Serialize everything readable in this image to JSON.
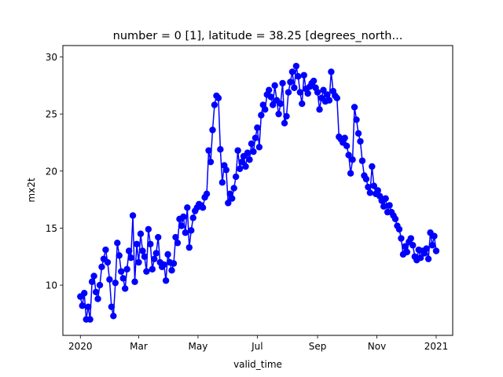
{
  "chart_data": {
    "type": "line",
    "title": "number = 0 [1], latitude = 38.25 [degrees_north...",
    "xlabel": "valid_time",
    "ylabel": "mx2t",
    "xlim": [
      "2019-12-14",
      "2021-01-18"
    ],
    "ylim": [
      5.6,
      31.0
    ],
    "grid": false,
    "legend": "none",
    "marker": "circle",
    "color": "#0000ff",
    "x_ticks": [
      {
        "date": "2020-01-01",
        "label": "2020"
      },
      {
        "date": "2020-03-01",
        "label": "Mar"
      },
      {
        "date": "2020-05-01",
        "label": "May"
      },
      {
        "date": "2020-07-01",
        "label": "Jul"
      },
      {
        "date": "2020-09-01",
        "label": "Sep"
      },
      {
        "date": "2020-11-01",
        "label": "Nov"
      },
      {
        "date": "2021-01-01",
        "label": "2021"
      }
    ],
    "y_ticks": [
      10,
      15,
      20,
      25,
      30
    ],
    "x": [
      "2020-01-01",
      "2020-01-03",
      "2020-01-05",
      "2020-01-07",
      "2020-01-09",
      "2020-01-11",
      "2020-01-13",
      "2020-01-15",
      "2020-01-17",
      "2020-01-19",
      "2020-01-21",
      "2020-01-23",
      "2020-01-25",
      "2020-01-27",
      "2020-01-29",
      "2020-01-31",
      "2020-02-02",
      "2020-02-04",
      "2020-02-06",
      "2020-02-08",
      "2020-02-10",
      "2020-02-12",
      "2020-02-14",
      "2020-02-16",
      "2020-02-18",
      "2020-02-20",
      "2020-02-22",
      "2020-02-24",
      "2020-02-26",
      "2020-02-28",
      "2020-03-01",
      "2020-03-03",
      "2020-03-05",
      "2020-03-07",
      "2020-03-09",
      "2020-03-11",
      "2020-03-13",
      "2020-03-15",
      "2020-03-17",
      "2020-03-19",
      "2020-03-21",
      "2020-03-23",
      "2020-03-25",
      "2020-03-27",
      "2020-03-29",
      "2020-03-31",
      "2020-04-02",
      "2020-04-04",
      "2020-04-06",
      "2020-04-08",
      "2020-04-10",
      "2020-04-12",
      "2020-04-14",
      "2020-04-16",
      "2020-04-18",
      "2020-04-20",
      "2020-04-22",
      "2020-04-24",
      "2020-04-26",
      "2020-04-28",
      "2020-04-30",
      "2020-05-02",
      "2020-05-04",
      "2020-05-06",
      "2020-05-08",
      "2020-05-10",
      "2020-05-12",
      "2020-05-14",
      "2020-05-16",
      "2020-05-18",
      "2020-05-20",
      "2020-05-22",
      "2020-05-24",
      "2020-05-26",
      "2020-05-28",
      "2020-05-30",
      "2020-06-01",
      "2020-06-03",
      "2020-06-05",
      "2020-06-07",
      "2020-06-09",
      "2020-06-11",
      "2020-06-13",
      "2020-06-15",
      "2020-06-17",
      "2020-06-19",
      "2020-06-21",
      "2020-06-23",
      "2020-06-25",
      "2020-06-27",
      "2020-06-29",
      "2020-07-01",
      "2020-07-03",
      "2020-07-05",
      "2020-07-07",
      "2020-07-09",
      "2020-07-11",
      "2020-07-13",
      "2020-07-15",
      "2020-07-17",
      "2020-07-19",
      "2020-07-21",
      "2020-07-23",
      "2020-07-25",
      "2020-07-27",
      "2020-07-29",
      "2020-07-31",
      "2020-08-02",
      "2020-08-04",
      "2020-08-06",
      "2020-08-08",
      "2020-08-10",
      "2020-08-12",
      "2020-08-14",
      "2020-08-16",
      "2020-08-18",
      "2020-08-20",
      "2020-08-22",
      "2020-08-24",
      "2020-08-26",
      "2020-08-28",
      "2020-08-30",
      "2020-09-01",
      "2020-09-03",
      "2020-09-05",
      "2020-09-07",
      "2020-09-09",
      "2020-09-11",
      "2020-09-13",
      "2020-09-15",
      "2020-09-17",
      "2020-09-19",
      "2020-09-21",
      "2020-09-23",
      "2020-09-25",
      "2020-09-27",
      "2020-09-29",
      "2020-10-01",
      "2020-10-03",
      "2020-10-05",
      "2020-10-07",
      "2020-10-09",
      "2020-10-11",
      "2020-10-13",
      "2020-10-15",
      "2020-10-17",
      "2020-10-19",
      "2020-10-21",
      "2020-10-23",
      "2020-10-25",
      "2020-10-27",
      "2020-10-29",
      "2020-10-31",
      "2020-11-02",
      "2020-11-04",
      "2020-11-06",
      "2020-11-08",
      "2020-11-10",
      "2020-11-12",
      "2020-11-14",
      "2020-11-16",
      "2020-11-18",
      "2020-11-20",
      "2020-11-22",
      "2020-11-24",
      "2020-11-26",
      "2020-11-28",
      "2020-11-30",
      "2020-12-02",
      "2020-12-04",
      "2020-12-06",
      "2020-12-08",
      "2020-12-10",
      "2020-12-12",
      "2020-12-14",
      "2020-12-16",
      "2020-12-18",
      "2020-12-20",
      "2020-12-22",
      "2020-12-24",
      "2020-12-26",
      "2020-12-28",
      "2020-12-30",
      "2021-01-01"
    ],
    "series": [
      {
        "values": [
          9.0,
          8.2,
          9.3,
          7.0,
          8.1,
          7.0,
          10.3,
          10.8,
          9.4,
          8.8,
          10.0,
          11.6,
          12.3,
          13.1,
          12.0,
          10.5,
          8.1,
          7.3,
          10.2,
          13.7,
          12.6,
          11.2,
          10.6,
          9.7,
          11.4,
          13.0,
          12.4,
          16.1,
          10.3,
          13.6,
          12.0,
          14.5,
          13.0,
          12.5,
          11.2,
          14.9,
          13.6,
          11.4,
          12.3,
          12.8,
          14.2,
          12.0,
          11.6,
          11.8,
          10.4,
          12.7,
          12.0,
          11.3,
          11.9,
          14.2,
          13.7,
          15.8,
          15.2,
          16.0,
          14.6,
          16.8,
          13.3,
          14.8,
          15.9,
          16.5,
          16.8,
          17.1,
          17.0,
          16.8,
          17.7,
          18.0,
          21.8,
          20.8,
          23.6,
          25.8,
          26.6,
          26.4,
          21.9,
          19.0,
          20.5,
          20.1,
          17.2,
          18.0,
          17.6,
          18.5,
          19.5,
          21.8,
          20.2,
          20.8,
          21.3,
          20.4,
          21.6,
          21.0,
          22.4,
          21.7,
          22.9,
          23.8,
          22.1,
          24.9,
          25.8,
          25.4,
          26.7,
          27.1,
          26.5,
          25.8,
          27.5,
          26.2,
          25.0,
          25.9,
          27.7,
          24.2,
          24.8,
          26.9,
          27.8,
          28.7,
          27.3,
          29.2,
          28.3,
          26.9,
          25.9,
          28.4,
          27.2,
          26.8,
          27.4,
          27.7,
          27.9,
          27.3,
          26.9,
          25.4,
          26.4,
          27.1,
          26.1,
          26.7,
          26.2,
          28.7,
          27.0,
          26.6,
          26.4,
          23.0,
          22.8,
          22.5,
          22.9,
          22.2,
          21.4,
          19.8,
          21.0,
          25.6,
          24.5,
          23.3,
          22.6,
          20.9,
          19.6,
          19.3,
          18.6,
          18.1,
          20.4,
          18.7,
          18.0,
          18.3,
          17.8,
          17.4,
          16.9,
          17.6,
          16.4,
          17.0,
          16.4,
          16.1,
          15.8,
          15.2,
          14.9,
          14.1,
          12.7,
          13.4,
          12.9,
          13.8,
          14.1,
          13.5,
          12.5,
          12.2,
          13.1,
          12.4,
          13.0,
          12.8,
          13.2,
          12.3,
          14.6,
          13.5,
          14.3,
          13.0
        ]
      }
    ]
  }
}
